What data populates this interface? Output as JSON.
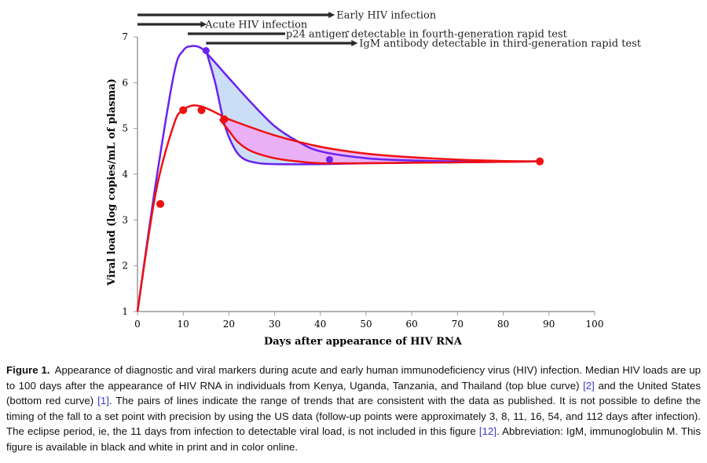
{
  "chart_data": {
    "type": "line",
    "xlabel": "Days after appearance of HIV RNA",
    "ylabel": "Viral load (log copies/mL of plasma)",
    "xlim": [
      0,
      100
    ],
    "ylim": [
      1,
      7
    ],
    "xticks": [
      0,
      10,
      20,
      30,
      40,
      50,
      60,
      70,
      80,
      90,
      100
    ],
    "yticks": [
      1,
      2,
      3,
      4,
      5,
      6,
      7
    ],
    "grid": false,
    "series": [
      {
        "color": "#6a22ee",
        "fill": "#c2d8f6",
        "upper": {
          "x": [
            0,
            4,
            8,
            10,
            12,
            14,
            16,
            20,
            25,
            30,
            35,
            40,
            50,
            60,
            70,
            80,
            88
          ],
          "y": [
            1.0,
            3.8,
            6.2,
            6.7,
            6.8,
            6.75,
            6.55,
            6.1,
            5.55,
            5.05,
            4.72,
            4.5,
            4.35,
            4.3,
            4.28,
            4.28,
            4.28
          ]
        },
        "lower": {
          "x": [
            15,
            17,
            19,
            21,
            23,
            26,
            30,
            40,
            50,
            60,
            70,
            80,
            88
          ],
          "y": [
            6.7,
            6.0,
            5.1,
            4.6,
            4.35,
            4.25,
            4.22,
            4.22,
            4.24,
            4.25,
            4.26,
            4.27,
            4.28
          ]
        },
        "points": {
          "x": [
            15,
            42,
            88
          ],
          "y": [
            6.7,
            4.32,
            4.28
          ]
        }
      },
      {
        "color": "#ee1111",
        "fill": "#f0a8f4",
        "upper": {
          "x": [
            0,
            4,
            8,
            10,
            12,
            14,
            16,
            18,
            20,
            30,
            40,
            50,
            60,
            70,
            80,
            88
          ],
          "y": [
            1.0,
            3.6,
            5.1,
            5.4,
            5.5,
            5.48,
            5.4,
            5.3,
            5.2,
            4.85,
            4.6,
            4.45,
            4.37,
            4.32,
            4.29,
            4.28
          ]
        },
        "lower": {
          "x": [
            18,
            20,
            22,
            25,
            30,
            35,
            40,
            50,
            60,
            70,
            80,
            88
          ],
          "y": [
            5.2,
            4.95,
            4.7,
            4.5,
            4.35,
            4.28,
            4.24,
            4.24,
            4.25,
            4.26,
            4.27,
            4.28
          ]
        },
        "points": {
          "x": [
            5,
            10,
            14,
            19,
            88
          ],
          "y": [
            3.35,
            5.4,
            5.4,
            5.2,
            4.28
          ]
        }
      }
    ],
    "timelines": [
      {
        "label": "Early HIV infection",
        "start": 0,
        "end": 43,
        "label_side": "right"
      },
      {
        "label": "Acute HIV infection",
        "start": 0,
        "end": 15,
        "label_side": "right"
      },
      {
        "label": "p24 antigen detectable in fourth-generation rapid test",
        "start": 11,
        "end": 47,
        "label_side": "inside"
      },
      {
        "label": "IgM antibody detectable in third-generation rapid test",
        "start": 15,
        "end": 48,
        "label_side": "right"
      }
    ]
  },
  "caption": {
    "label": "Figure 1.",
    "part1": "Appearance of diagnostic and viral markers during acute and early human immunodeficiency virus (HIV) infection. Median HIV loads are up to 100 days after the appearance of HIV RNA in individuals from Kenya, Uganda, Tanzania, and Thailand (top blue curve) ",
    "ref1": "[2]",
    "part2": " and the United States (bottom red curve) ",
    "ref2": "[1]",
    "part3": ". The pairs of lines indicate the range of trends that are consistent with the data as published. It is not possible to define the timing of the fall to a set point with precision by using the US data (follow-up points were approximately 3, 8, 11, 16, 54, and 112 days after infection). The eclipse period, ie, the 11 days from infection to detectable viral load, is not included in this figure ",
    "ref3": "[12]",
    "part4": ". Abbreviation: IgM, immunoglobulin M. This figure is available in black and white in print and in color online."
  }
}
